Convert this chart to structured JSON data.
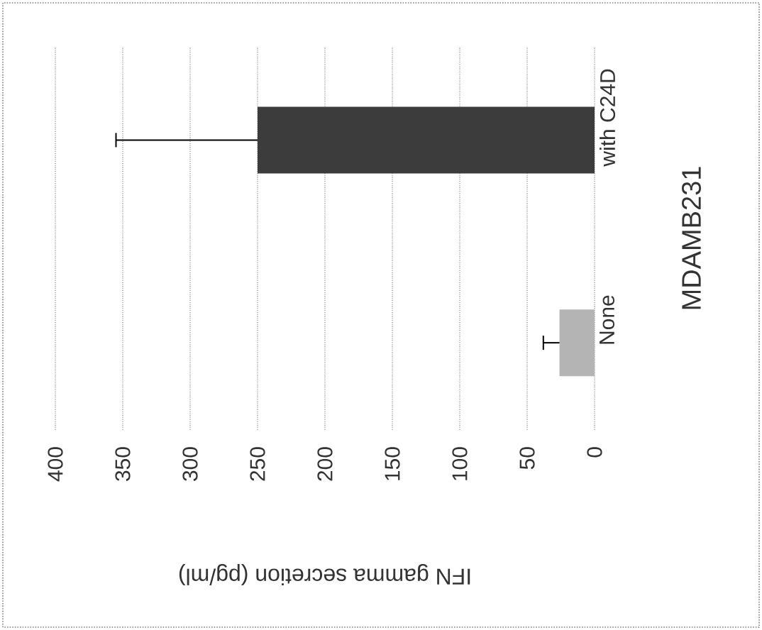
{
  "chart_data": {
    "type": "bar",
    "orientation": "horizontal",
    "xlabel": "IFN gamma secretion (pg/ml)",
    "ylabel": "MDAMB231",
    "categories": [
      "with C24D",
      "None"
    ],
    "values": [
      250,
      26
    ],
    "colors": [
      "#3c3c3c",
      "#b4b4b4"
    ],
    "errors": [
      [
        250,
        355
      ],
      [
        26,
        38
      ]
    ],
    "xlim": [
      400,
      0
    ],
    "xticks": [
      0,
      50,
      100,
      150,
      200,
      250,
      300,
      350,
      400
    ],
    "grid": "x"
  }
}
